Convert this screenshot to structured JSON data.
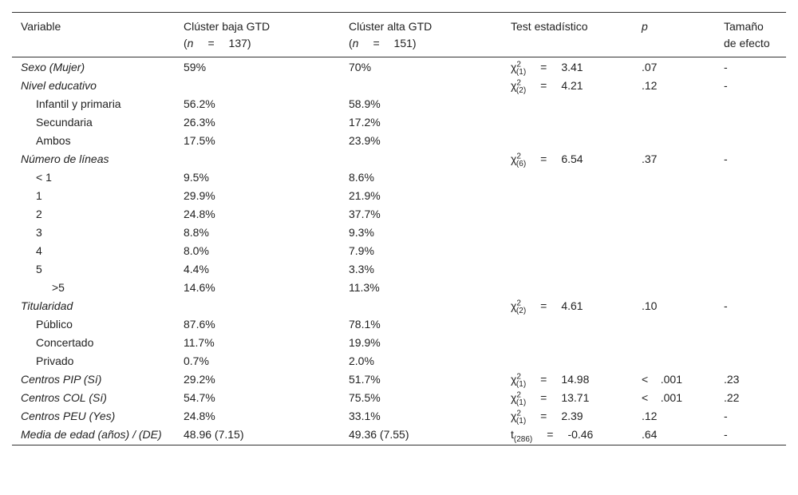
{
  "table": {
    "header": [
      {
        "title": "Variable"
      },
      {
        "title": "Clúster baja GTD",
        "sub": [
          "(",
          "n",
          "= 137)"
        ]
      },
      {
        "title": "Clúster alta GTD",
        "sub": [
          "(",
          "n",
          "= 151)"
        ]
      },
      {
        "title": "Test estadístico"
      },
      {
        "title": "p",
        "italic": true
      },
      {
        "title": "Tamaño de efecto"
      }
    ],
    "rows": [
      {
        "label": "Sexo (Mujer)",
        "italic": true,
        "baja": "59%",
        "alta": "70%",
        "test": {
          "sym": "χ",
          "sup": "2",
          "sub": "(1)",
          "eq": "=",
          "val": "3.41"
        },
        "p": ".07",
        "effect": "-"
      },
      {
        "label": "Nivel educativo",
        "italic": true,
        "test": {
          "sym": "χ",
          "sup": "2",
          "sub": "(2)",
          "eq": "=",
          "val": "4.21"
        },
        "p": ".12",
        "effect": "-"
      },
      {
        "label": "Infantil y primaria",
        "indent": 1,
        "baja": "56.2%",
        "alta": "58.9%"
      },
      {
        "label": "Secundaria",
        "indent": 1,
        "baja": "26.3%",
        "alta": "17.2%"
      },
      {
        "label": "Ambos",
        "indent": 1,
        "baja": "17.5%",
        "alta": "23.9%"
      },
      {
        "label": "Número de líneas",
        "italic": true,
        "test": {
          "sym": "χ",
          "sup": "2",
          "sub": "(6)",
          "eq": "=",
          "val": "6.54"
        },
        "p": ".37",
        "effect": "-"
      },
      {
        "label": "<    1",
        "indent": 1,
        "baja": "9.5%",
        "alta": "8.6%"
      },
      {
        "label": "1",
        "indent": 1,
        "baja": "29.9%",
        "alta": "21.9%"
      },
      {
        "label": "2",
        "indent": 1,
        "baja": "24.8%",
        "alta": "37.7%"
      },
      {
        "label": "3",
        "indent": 1,
        "baja": "8.8%",
        "alta": "9.3%"
      },
      {
        "label": "4",
        "indent": 1,
        "baja": "8.0%",
        "alta": "7.9%"
      },
      {
        "label": "5",
        "indent": 1,
        "baja": "4.4%",
        "alta": "3.3%"
      },
      {
        "label": ">5",
        "indent": 2,
        "baja": "14.6%",
        "alta": "11.3%"
      },
      {
        "label": "Titularidad",
        "italic": true,
        "test": {
          "sym": "χ",
          "sup": "2",
          "sub": "(2)",
          "eq": "=",
          "val": "4.61"
        },
        "p": ".10",
        "effect": "-"
      },
      {
        "label": "Público",
        "indent": 1,
        "baja": "87.6%",
        "alta": "78.1%"
      },
      {
        "label": "Concertado",
        "indent": 1,
        "baja": "11.7%",
        "alta": "19.9%"
      },
      {
        "label": "Privado",
        "indent": 1,
        "baja": "0.7%",
        "alta": "2.0%"
      },
      {
        "label": "Centros PIP (Sí)",
        "italic": true,
        "baja": "29.2%",
        "alta": "51.7%",
        "test": {
          "sym": "χ",
          "sup": "2",
          "sub": "(1)",
          "eq": "=",
          "val": "14.98"
        },
        "p": "<    .001",
        "effect": ".23"
      },
      {
        "label": "Centros COL (Sí)",
        "italic": true,
        "baja": "54.7%",
        "alta": "75.5%",
        "test": {
          "sym": "χ",
          "sup": "2",
          "sub": "(1)",
          "eq": "=",
          "val": "13.71"
        },
        "p": "<    .001",
        "effect": ".22"
      },
      {
        "label": "Centros PEU (Yes)",
        "italic": true,
        "baja": "24.8%",
        "alta": "33.1%",
        "test": {
          "sym": "χ",
          "sup": "2",
          "sub": "(1)",
          "eq": "=",
          "val": "2.39"
        },
        "p": ".12",
        "effect": "-"
      },
      {
        "label": "Media de edad (años) / (DE)",
        "italic": true,
        "baja": "48.96 (7.15)",
        "alta": "49.36 (7.55)",
        "test": {
          "sym": "t",
          "sub": "(286)",
          "eq": "=",
          "val": "-0.46"
        },
        "p": ".64",
        "effect": "-"
      }
    ]
  }
}
